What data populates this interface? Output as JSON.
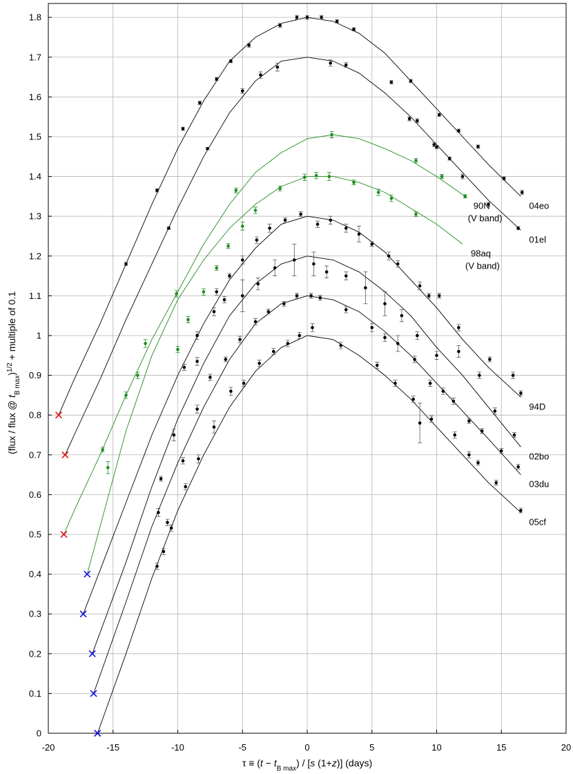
{
  "chart_data": {
    "type": "line",
    "xlim": [
      -20,
      20
    ],
    "ylim": [
      0,
      1.835
    ],
    "xticks": [
      -20,
      -15,
      -10,
      -5,
      0,
      5,
      10,
      15,
      20
    ],
    "yticks": [
      0,
      0.1,
      0.2,
      0.3,
      0.4,
      0.5,
      0.6,
      0.7,
      0.8,
      0.9,
      1,
      1.1,
      1.2,
      1.3,
      1.4,
      1.5,
      1.6,
      1.7,
      1.8
    ],
    "grid": true,
    "xlabel": [
      {
        "text": "τ ≡ (",
        "style": "normal"
      },
      {
        "text": "t",
        "style": "italic"
      },
      {
        "text": " − ",
        "style": "normal"
      },
      {
        "text": "t",
        "style": "italic"
      },
      {
        "text": "B max",
        "style": "sub"
      },
      {
        "text": ") / [",
        "style": "normal"
      },
      {
        "text": "s",
        "style": "italic"
      },
      {
        "text": " (1+",
        "style": "normal"
      },
      {
        "text": "z",
        "style": "italic"
      },
      {
        "text": ")] (days)",
        "style": "normal"
      }
    ],
    "ylabel": [
      {
        "text": "(flux / flux @ ",
        "style": "normal"
      },
      {
        "text": "t",
        "style": "italic"
      },
      {
        "text": "B max",
        "style": "sub"
      },
      {
        "text": ")",
        "style": "normal"
      },
      {
        "text": "1/2",
        "style": "sup"
      },
      {
        "text": " + multiple of 0.1",
        "style": "normal"
      }
    ],
    "series": [
      {
        "name": "04eo",
        "color": "#000000",
        "start_x": -19.2,
        "start_y": 0.8,
        "start_color": "#e01010",
        "curve_x": [
          -19.2,
          -18,
          -16,
          -14,
          -12,
          -10,
          -8,
          -6,
          -4,
          -2,
          0,
          2,
          4,
          6,
          8,
          10,
          12,
          14,
          16.5
        ],
        "curve_y": [
          0.8,
          0.89,
          1.03,
          1.18,
          1.33,
          1.47,
          1.59,
          1.69,
          1.75,
          1.785,
          1.8,
          1.79,
          1.76,
          1.71,
          1.64,
          1.57,
          1.5,
          1.43,
          1.35
        ],
        "x": [
          -14,
          -11.6,
          -9.6,
          -8.3,
          -7,
          -5.9,
          -4.5,
          -2.1,
          -0.8,
          0,
          1.1,
          2.3,
          3.6,
          8,
          10.2,
          11.7,
          13.2,
          15.2,
          16.6
        ],
        "values": [
          1.18,
          1.365,
          1.52,
          1.585,
          1.645,
          1.69,
          1.73,
          1.78,
          1.8,
          1.8,
          1.8,
          1.79,
          1.77,
          1.64,
          1.555,
          1.515,
          1.475,
          1.395,
          1.36
        ],
        "errors": [
          0.004,
          0.004,
          0.004,
          0.004,
          0.004,
          0.004,
          0.005,
          0.005,
          0.005,
          0.005,
          0.005,
          0.004,
          0.004,
          0.004,
          0.004,
          0.004,
          0.004,
          0.004,
          0.005
        ]
      },
      {
        "name": "01el",
        "color": "#000000",
        "start_x": -18.7,
        "start_y": 0.7,
        "start_color": "#e01010",
        "curve_x": [
          -18.7,
          -18,
          -16,
          -14,
          -12,
          -10,
          -8,
          -6,
          -4,
          -2,
          0,
          2,
          4,
          6,
          8,
          10,
          12,
          14,
          16.5
        ],
        "curve_y": [
          0.7,
          0.75,
          0.89,
          1.04,
          1.18,
          1.32,
          1.45,
          1.56,
          1.64,
          1.69,
          1.7,
          1.69,
          1.66,
          1.61,
          1.55,
          1.48,
          1.41,
          1.34,
          1.265
        ],
        "x": [
          -10.7,
          -7.7,
          -5,
          -3.6,
          -2.3,
          1.8,
          3,
          6.5,
          7.9,
          8.5,
          9.8,
          10,
          11,
          12,
          14,
          16.3
        ],
        "values": [
          1.27,
          1.47,
          1.615,
          1.655,
          1.675,
          1.685,
          1.68,
          1.637,
          1.545,
          1.54,
          1.48,
          1.474,
          1.445,
          1.4,
          1.33,
          1.27
        ],
        "errors": [
          0.003,
          0.003,
          0.006,
          0.008,
          0.01,
          0.008,
          0.006,
          0.004,
          0.005,
          0.005,
          0.005,
          0.004,
          0.004,
          0.006,
          0.005,
          0.004
        ]
      },
      {
        "name": "90N",
        "note": "(V band)",
        "color": "#1e8c1e",
        "start_x": -18.8,
        "start_y": 0.5,
        "start_color": "#e01010",
        "curve_x": [
          -18.8,
          -18,
          -16,
          -14,
          -12,
          -10,
          -8,
          -6,
          -4,
          -2,
          0,
          2,
          4,
          6,
          8,
          10,
          12.2
        ],
        "curve_y": [
          0.5,
          0.56,
          0.7,
          0.85,
          0.99,
          1.11,
          1.23,
          1.33,
          1.41,
          1.46,
          1.495,
          1.505,
          1.495,
          1.47,
          1.44,
          1.4,
          1.35
        ],
        "x": [
          -15.8,
          -12.5,
          -10.1,
          -5.5,
          1.9,
          8.4,
          10.4,
          12.2
        ],
        "values": [
          0.713,
          0.98,
          1.105,
          1.365,
          1.505,
          1.44,
          1.4,
          1.35
        ],
        "errors": [
          0.006,
          0.01,
          0.008,
          0.006,
          0.008,
          0.005,
          0.005,
          0.004
        ]
      },
      {
        "name": "98aq",
        "note": "(V band)",
        "color": "#1e8c1e",
        "start_x": -17,
        "start_y": 0.4,
        "start_color": "#1010e0",
        "curve_x": [
          -17,
          -16,
          -14,
          -12,
          -10,
          -8,
          -6,
          -4,
          -2,
          0,
          2,
          4,
          6,
          8,
          10,
          12
        ],
        "curve_y": [
          0.4,
          0.52,
          0.76,
          0.95,
          1.09,
          1.19,
          1.27,
          1.33,
          1.375,
          1.4,
          1.4,
          1.385,
          1.36,
          1.32,
          1.28,
          1.23
        ],
        "x": [
          -15.4,
          -14,
          -13.1,
          -10,
          -9.2,
          -8,
          -7,
          -6.1,
          -5,
          -4,
          -2.1,
          -0.2,
          0.7,
          1.7,
          3.6,
          5.5,
          6.5,
          8.4
        ],
        "values": [
          0.668,
          0.85,
          0.9,
          0.965,
          1.04,
          1.11,
          1.17,
          1.225,
          1.275,
          1.315,
          1.37,
          1.398,
          1.402,
          1.4,
          1.385,
          1.36,
          1.345,
          1.305
        ],
        "errors": [
          0.015,
          0.008,
          0.008,
          0.008,
          0.008,
          0.008,
          0.006,
          0.006,
          0.01,
          0.008,
          0.006,
          0.008,
          0.008,
          0.01,
          0.006,
          0.008,
          0.008,
          0.006
        ]
      },
      {
        "name": "94D",
        "color": "#000000",
        "start_x": -17.3,
        "start_y": 0.3,
        "start_color": "#1010e0",
        "curve_x": [
          -17.3,
          -16,
          -14,
          -12,
          -10,
          -8,
          -6,
          -4,
          -2,
          0,
          2,
          4,
          6,
          8,
          10,
          12,
          14,
          16,
          16.5
        ],
        "curve_y": [
          0.3,
          0.41,
          0.58,
          0.75,
          0.9,
          1.03,
          1.14,
          1.22,
          1.28,
          1.3,
          1.29,
          1.26,
          1.21,
          1.14,
          1.07,
          0.99,
          0.92,
          0.86,
          0.845
        ],
        "x": [
          -11.3,
          -9.5,
          -8.5,
          -7,
          -6,
          -5,
          -3.9,
          -2.9,
          -1.7,
          -0.5,
          0.8,
          1.8,
          3,
          4,
          5,
          6.3,
          7,
          8.7,
          9.4,
          10.2,
          11.7,
          14.1,
          15.9,
          16.5
        ],
        "values": [
          0.64,
          0.92,
          1.0,
          1.11,
          1.15,
          1.19,
          1.24,
          1.27,
          1.29,
          1.305,
          1.28,
          1.29,
          1.27,
          1.255,
          1.23,
          1.2,
          1.18,
          1.125,
          1.1,
          1.1,
          1.02,
          0.94,
          0.9,
          0.855
        ],
        "errors": [
          0.006,
          0.008,
          0.01,
          0.008,
          0.006,
          0.01,
          0.008,
          0.01,
          0.006,
          0.006,
          0.008,
          0.01,
          0.01,
          0.02,
          0.006,
          0.01,
          0.008,
          0.01,
          0.006,
          0.006,
          0.008,
          0.006,
          0.008,
          0.006
        ]
      },
      {
        "name": "02bo",
        "color": "#000000",
        "start_x": -16.6,
        "start_y": 0.2,
        "start_color": "#1010e0",
        "curve_x": [
          -16.6,
          -14,
          -12,
          -10,
          -8,
          -6,
          -4,
          -2,
          0,
          2,
          4,
          6,
          8,
          10,
          12,
          14,
          16.5
        ],
        "curve_y": [
          0.2,
          0.43,
          0.62,
          0.79,
          0.93,
          1.05,
          1.13,
          1.18,
          1.2,
          1.19,
          1.16,
          1.11,
          1.05,
          0.97,
          0.9,
          0.82,
          0.72
        ],
        "x": [
          -11.5,
          -10.3,
          -8.5,
          -7.2,
          -6.4,
          -5,
          -3.8,
          -2.5,
          -1,
          0.5,
          1.5,
          3,
          4.5,
          6,
          7.3,
          8.5,
          10,
          11.7,
          13.3,
          14.5,
          16
        ],
        "values": [
          0.555,
          0.75,
          0.935,
          1.06,
          1.09,
          1.1,
          1.13,
          1.17,
          1.19,
          1.18,
          1.16,
          1.15,
          1.12,
          1.08,
          1.05,
          1.0,
          0.95,
          0.96,
          0.9,
          0.81,
          0.75
        ],
        "errors": [
          0.01,
          0.015,
          0.01,
          0.01,
          0.008,
          0.04,
          0.015,
          0.02,
          0.04,
          0.03,
          0.015,
          0.01,
          0.04,
          0.03,
          0.015,
          0.01,
          0.01,
          0.015,
          0.008,
          0.008,
          0.006
        ]
      },
      {
        "name": "03du",
        "color": "#000000",
        "start_x": -16.5,
        "start_y": 0.1,
        "start_color": "#1010e0",
        "curve_x": [
          -16.5,
          -14,
          -12,
          -10,
          -8,
          -6,
          -4,
          -2,
          0,
          2,
          4,
          6,
          8,
          10,
          12,
          14,
          16.5
        ],
        "curve_y": [
          0.1,
          0.33,
          0.52,
          0.68,
          0.82,
          0.94,
          1.03,
          1.08,
          1.1,
          1.09,
          1.06,
          1.01,
          0.95,
          0.88,
          0.81,
          0.74,
          0.65
        ],
        "x": [
          -10.8,
          -9.6,
          -8.5,
          -7.5,
          -6.3,
          -5.2,
          -4,
          -3,
          -1.8,
          -0.8,
          0.3,
          1,
          3,
          5,
          6,
          7,
          8.3,
          9.5,
          10.5,
          11.3,
          12.5,
          13.5,
          15,
          16.3
        ],
        "values": [
          0.53,
          0.685,
          0.815,
          0.895,
          0.94,
          0.99,
          1.035,
          1.06,
          1.08,
          1.1,
          1.1,
          1.095,
          1.065,
          1.02,
          0.995,
          0.98,
          0.94,
          0.88,
          0.86,
          0.835,
          0.785,
          0.76,
          0.71,
          0.67
        ],
        "errors": [
          0.008,
          0.008,
          0.01,
          0.008,
          0.006,
          0.008,
          0.008,
          0.006,
          0.006,
          0.006,
          0.006,
          0.006,
          0.008,
          0.01,
          0.01,
          0.02,
          0.008,
          0.008,
          0.008,
          0.008,
          0.006,
          0.006,
          0.006,
          0.006
        ]
      },
      {
        "name": "05cf",
        "color": "#000000",
        "start_x": -16.2,
        "start_y": 0,
        "start_color": "#1010e0",
        "curve_x": [
          -16.2,
          -14,
          -12,
          -10,
          -8,
          -6,
          -4,
          -2,
          0,
          2,
          4,
          6,
          8,
          10,
          12,
          14,
          16.5
        ],
        "curve_y": [
          0,
          0.2,
          0.39,
          0.56,
          0.7,
          0.82,
          0.91,
          0.97,
          1.0,
          0.99,
          0.95,
          0.9,
          0.84,
          0.77,
          0.7,
          0.63,
          0.555
        ],
        "x": [
          -11.6,
          -11.1,
          -10.5,
          -9.4,
          -8.4,
          -7.2,
          -5.9,
          -4.9,
          -3.7,
          -2.6,
          -1.5,
          -0.6,
          0.4,
          2.6,
          5.4,
          6.8,
          8.2,
          8.7,
          9.6,
          11.4,
          12.5,
          13.2,
          14.6,
          16.5
        ],
        "values": [
          0.42,
          0.457,
          0.516,
          0.62,
          0.69,
          0.77,
          0.86,
          0.88,
          0.93,
          0.96,
          0.98,
          1.0,
          1.02,
          0.975,
          0.925,
          0.88,
          0.84,
          0.78,
          0.79,
          0.75,
          0.7,
          0.68,
          0.63,
          0.56
        ],
        "errors": [
          0.008,
          0.008,
          0.008,
          0.008,
          0.01,
          0.015,
          0.01,
          0.008,
          0.008,
          0.008,
          0.008,
          0.008,
          0.01,
          0.008,
          0.008,
          0.008,
          0.008,
          0.05,
          0.008,
          0.008,
          0.008,
          0.006,
          0.006,
          0.006
        ]
      }
    ]
  }
}
